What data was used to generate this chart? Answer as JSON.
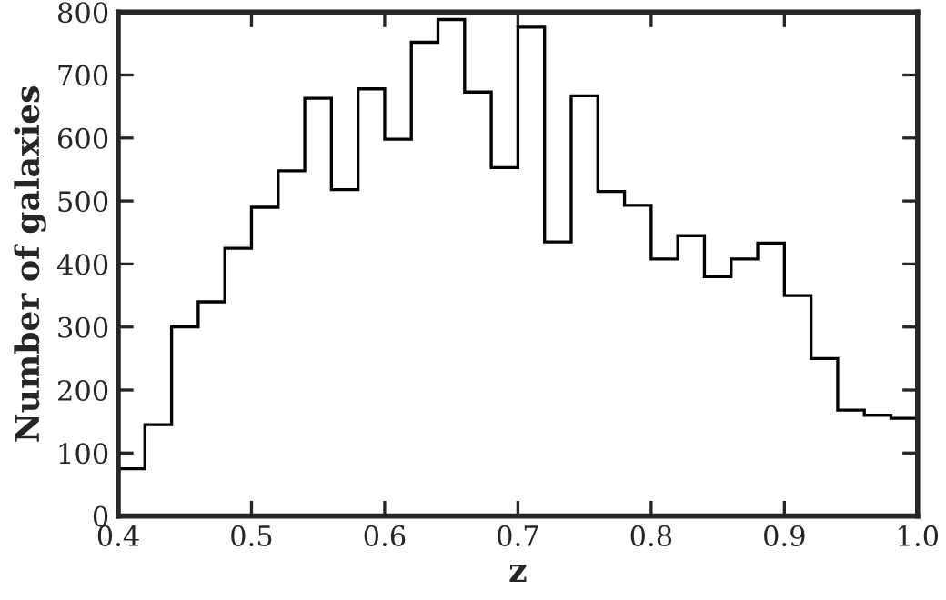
{
  "chart_data": {
    "type": "histogram",
    "xlabel": "z",
    "ylabel": "Number of galaxies",
    "bins": [
      0.4,
      0.42,
      0.44,
      0.46,
      0.48,
      0.5,
      0.52,
      0.54,
      0.56,
      0.58,
      0.6,
      0.62,
      0.64,
      0.66,
      0.68,
      0.7,
      0.72,
      0.74,
      0.76,
      0.78,
      0.8,
      0.82,
      0.84,
      0.86,
      0.88,
      0.9,
      0.92,
      0.94,
      0.96,
      0.98,
      1.0
    ],
    "values": [
      75,
      145,
      300,
      340,
      425,
      490,
      548,
      663,
      518,
      678,
      598,
      752,
      788,
      673,
      553,
      776,
      435,
      667,
      515,
      493,
      408,
      445,
      380,
      408,
      433,
      350,
      250,
      168,
      160,
      155
    ],
    "color": "#000000",
    "xlim": [
      0.4,
      1.0
    ],
    "ylim": [
      0,
      800
    ],
    "xticks": [
      0.4,
      0.5,
      0.6,
      0.7,
      0.8,
      0.9,
      {
        "value": 1.0,
        "label": "1.0"
      }
    ],
    "yticks": [
      0,
      100,
      200,
      300,
      400,
      500,
      600,
      700,
      800
    ],
    "grid": false
  }
}
